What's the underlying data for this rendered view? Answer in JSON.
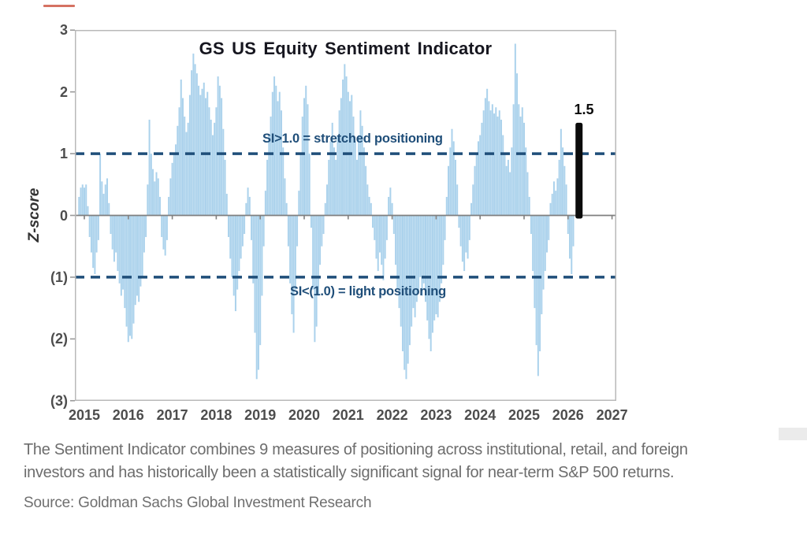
{
  "chart": {
    "title": "GS US Equity Sentiment Indicator",
    "y_axis": {
      "title": "Z-score",
      "tick_labels": [
        "3",
        "2",
        "1",
        "0",
        "(1)",
        "(2)",
        "(3)"
      ],
      "tick_values": [
        3,
        2,
        1,
        0,
        -1,
        -2,
        -3
      ]
    },
    "x_axis": {
      "tick_labels": [
        "2015",
        "2016",
        "2017",
        "2018",
        "2019",
        "2020",
        "2021",
        "2022",
        "2023",
        "2024",
        "2025",
        "2026",
        "2027"
      ],
      "tick_values": [
        2015,
        2016,
        2017,
        2018,
        2019,
        2020,
        2021,
        2022,
        2023,
        2024,
        2025,
        2026,
        2027
      ]
    },
    "annotations": {
      "stretched": "SI>1.0 = stretched positioning",
      "light": "SI<(1.0) = light positioning"
    },
    "latest": {
      "label": "1.5"
    },
    "colors": {
      "bar_fill": "#abd2ec",
      "latest_bar": "#0b0b0b",
      "threshold_line": "#1f4e79",
      "annotation_text": "#1f4e79",
      "title_text": "#16161f",
      "axis_label_text": "#4d4d4d",
      "zero_line": "#7f7f7f",
      "plot_border": "#b9b9b9",
      "caption_text": "#6d6d6d",
      "artifact_red": "#c7432e"
    }
  },
  "chart_data": {
    "type": "bar",
    "title": "GS US Equity Sentiment Indicator",
    "xlabel": "",
    "ylabel": "Z-score",
    "ylim": [
      -3,
      3
    ],
    "xlim": [
      2014.79,
      2027.1
    ],
    "x_ticks": [
      2015,
      2016,
      2017,
      2018,
      2019,
      2020,
      2021,
      2022,
      2023,
      2024,
      2025,
      2026,
      2027
    ],
    "grid": false,
    "legend": "none",
    "thresholds": [
      {
        "value": 1.0,
        "style": "dashed",
        "label": "SI>1.0 = stretched positioning"
      },
      {
        "value": -1.0,
        "style": "dashed",
        "label": "SI<(1.0) = light positioning"
      }
    ],
    "series": [
      {
        "name": "GS US Equity Sentiment Indicator (weekly z-score)",
        "x_encoding": "x[i] = x_start + i * x_step (decimal years)",
        "x_start": 2014.88,
        "x_step": 0.04,
        "y": [
          0.3,
          0.45,
          0.5,
          0.45,
          0.5,
          0.15,
          -0.35,
          -0.6,
          -0.85,
          -0.95,
          -0.6,
          -0.4,
          1.0,
          0.55,
          0.35,
          0.5,
          0.6,
          0.2,
          -0.3,
          -0.55,
          -0.75,
          -0.6,
          -0.9,
          -1.1,
          -1.3,
          -1.2,
          -1.5,
          -1.8,
          -2.05,
          -1.95,
          -2.0,
          -1.75,
          -1.45,
          -1.3,
          -1.4,
          -1.15,
          -1.0,
          -0.6,
          -0.35,
          0.5,
          1.55,
          1.0,
          0.75,
          0.55,
          0.7,
          0.6,
          0.3,
          -0.35,
          -0.55,
          -0.65,
          -0.4,
          0.3,
          0.6,
          0.85,
          1.0,
          1.15,
          1.45,
          1.75,
          2.2,
          1.9,
          1.6,
          1.35,
          1.5,
          1.95,
          2.35,
          2.62,
          2.45,
          2.3,
          2.1,
          1.95,
          2.05,
          2.15,
          1.9,
          2.0,
          1.75,
          1.55,
          1.3,
          1.5,
          1.75,
          2.25,
          2.1,
          1.9,
          1.4,
          0.9,
          0.35,
          -0.35,
          -0.7,
          -1.0,
          -1.3,
          -1.55,
          -1.2,
          -0.9,
          -0.7,
          -0.5,
          -0.3,
          0.2,
          0.45,
          0.3,
          -0.4,
          -1.1,
          -1.9,
          -2.65,
          -2.5,
          -2.1,
          -1.3,
          -0.5,
          0.4,
          0.9,
          1.3,
          1.6,
          2.0,
          2.25,
          2.1,
          1.85,
          2.0,
          1.7,
          1.1,
          0.6,
          0.2,
          -0.5,
          -1.1,
          -1.6,
          -1.9,
          -1.2,
          -0.5,
          0.4,
          1.0,
          1.6,
          1.9,
          2.1,
          1.8,
          1.0,
          -0.2,
          -1.2,
          -2.05,
          -1.8,
          -1.3,
          -0.8,
          -0.5,
          -0.3,
          0.2,
          0.5,
          0.9,
          1.2,
          1.5,
          1.1,
          0.9,
          1.3,
          1.7,
          1.9,
          2.2,
          2.45,
          2.25,
          2.0,
          1.85,
          1.95,
          1.6,
          1.2,
          0.9,
          1.3,
          1.7,
          1.45,
          1.1,
          0.8,
          0.5,
          0.3,
          0.2,
          -0.2,
          -0.4,
          -0.7,
          -0.9,
          -0.6,
          -0.8,
          -1.05,
          -0.7,
          -0.4,
          0.3,
          0.45,
          0.2,
          -0.3,
          -0.8,
          -1.2,
          -1.5,
          -1.8,
          -2.2,
          -2.5,
          -2.65,
          -2.4,
          -2.1,
          -1.8,
          -1.5,
          -1.65,
          -1.4,
          -1.2,
          -1.0,
          -1.3,
          -1.1,
          -1.4,
          -1.7,
          -2.0,
          -2.2,
          -1.9,
          -1.7,
          -1.6,
          -1.65,
          -1.4,
          -1.1,
          -0.8,
          -0.4,
          0.3,
          0.8,
          1.1,
          1.4,
          1.2,
          0.9,
          0.5,
          -0.2,
          -0.5,
          -0.75,
          -0.9,
          -0.6,
          -0.7,
          -0.4,
          0.2,
          0.5,
          0.8,
          1.0,
          1.2,
          1.3,
          1.5,
          1.7,
          1.9,
          2.05,
          1.85,
          1.7,
          1.8,
          1.65,
          1.75,
          1.6,
          1.7,
          1.55,
          1.3,
          1.0,
          0.8,
          0.9,
          0.7,
          1.1,
          1.8,
          2.78,
          2.3,
          1.8,
          1.6,
          1.75,
          1.5,
          1.1,
          0.7,
          0.3,
          -0.3,
          -0.9,
          -1.5,
          -2.1,
          -2.6,
          -2.2,
          -1.6,
          -1.2,
          -0.9,
          -0.6,
          -0.4,
          0.2,
          0.35,
          0.55,
          0.4,
          0.6,
          0.9,
          1.4,
          1.1,
          0.8,
          0.5,
          -0.3,
          -0.7,
          -0.95,
          -0.5
        ]
      }
    ],
    "latest_reading": {
      "x": 2026.25,
      "y": 1.5,
      "label": "1.5",
      "color": "#000000"
    }
  },
  "caption": {
    "line1": "The Sentiment Indicator combines 9 measures of positioning across institutional, retail, and foreign",
    "line2": "investors and has historically been a statistically significant signal for near-term S&P 500 returns.",
    "source": "Source: Goldman Sachs Global Investment Research"
  }
}
